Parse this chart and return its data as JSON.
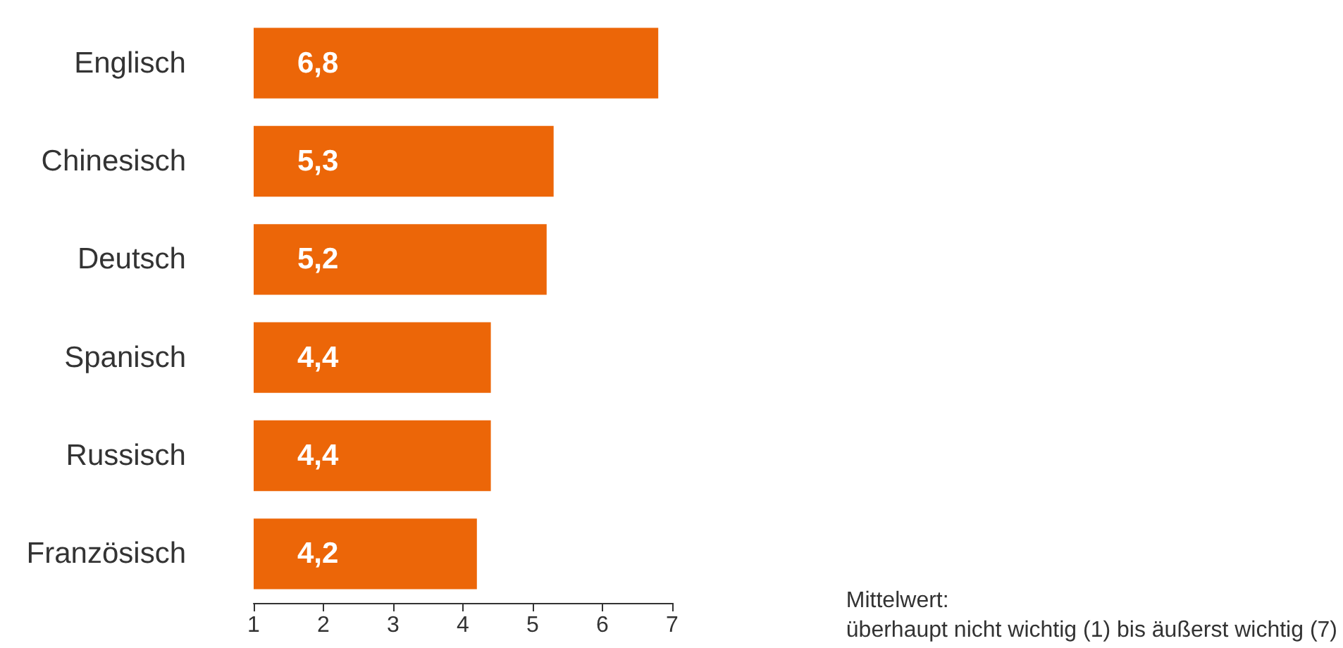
{
  "chart_data": {
    "type": "bar",
    "orientation": "horizontal",
    "categories": [
      "Englisch",
      "Chinesisch",
      "Deutsch",
      "Spanisch",
      "Russisch",
      "Französisch"
    ],
    "values": [
      6.8,
      5.3,
      5.2,
      4.4,
      4.4,
      4.2
    ],
    "value_labels": [
      "6,8",
      "5,3",
      "5,2",
      "4,4",
      "4,4",
      "4,2"
    ],
    "color": "#ec6608",
    "xlim": [
      1,
      7
    ],
    "xticks": [
      1,
      2,
      3,
      4,
      5,
      6,
      7
    ],
    "annotations": [
      "Mittelwert:\nüberhaupt nicht wichtig (1) bis äußerst wichtig (7)"
    ]
  }
}
